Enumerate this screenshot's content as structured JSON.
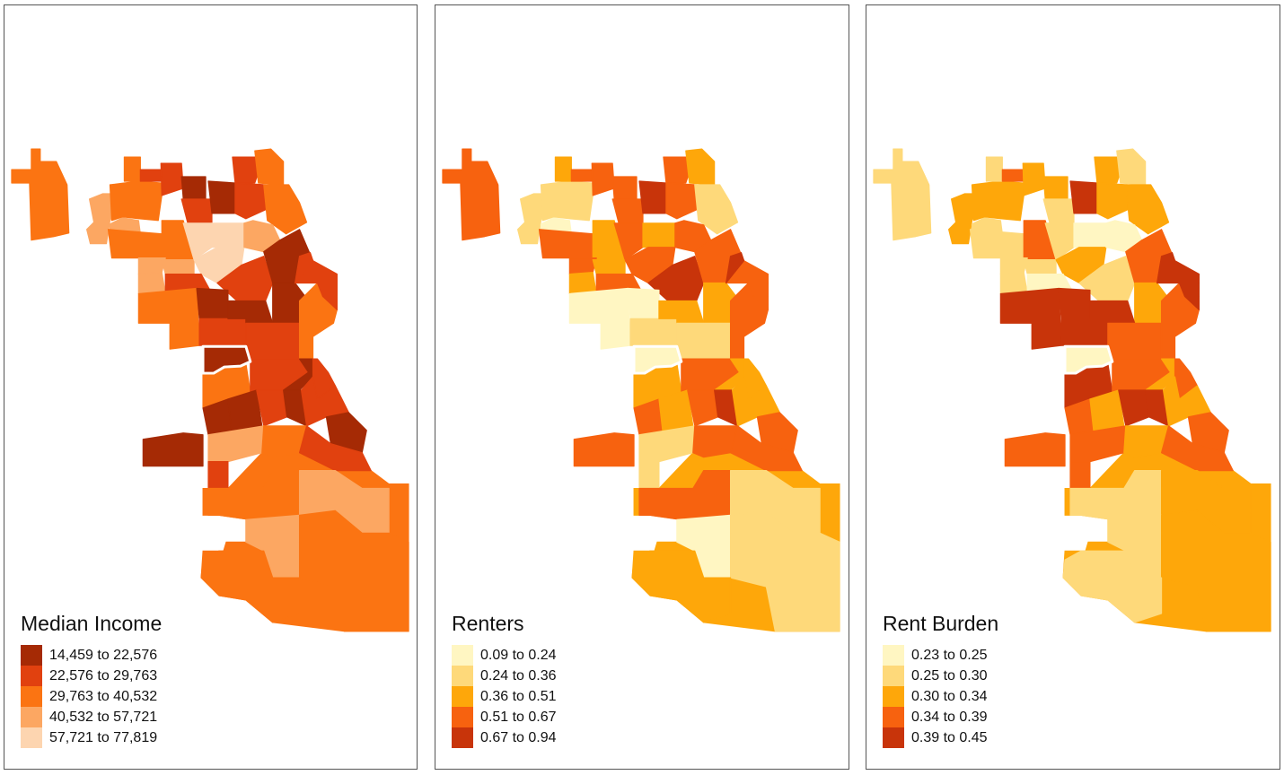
{
  "panels": [
    {
      "title": "Median Income",
      "legend": [
        {
          "label": "14,459 to 22,576",
          "color": "#a52a05"
        },
        {
          "label": "22,576 to 29,763",
          "color": "#e1410f"
        },
        {
          "label": "29,763 to 40,532",
          "color": "#fb7412"
        },
        {
          "label": "40,532 to 57,721",
          "color": "#fca762"
        },
        {
          "label": "57,721 to 77,819",
          "color": "#fdd5b0"
        }
      ]
    },
    {
      "title": "Renters",
      "legend": [
        {
          "label": "0.09 to 0.24",
          "color": "#fff6c2"
        },
        {
          "label": "0.24 to 0.36",
          "color": "#fed97a"
        },
        {
          "label": "0.36 to 0.51",
          "color": "#fea70a"
        },
        {
          "label": "0.51 to 0.67",
          "color": "#f7620f"
        },
        {
          "label": "0.67 to 0.94",
          "color": "#c8340a"
        }
      ]
    },
    {
      "title": "Rent Burden",
      "legend": [
        {
          "label": "0.23 to 0.25",
          "color": "#fff6c2"
        },
        {
          "label": "0.25 to 0.30",
          "color": "#fed97a"
        },
        {
          "label": "0.30 to 0.34",
          "color": "#fea70a"
        },
        {
          "label": "0.34 to 0.39",
          "color": "#f7620f"
        },
        {
          "label": "0.39 to 0.45",
          "color": "#c8340a"
        }
      ]
    }
  ],
  "region_classes": [
    [
      2,
      3,
      3,
      2,
      2,
      1,
      1,
      0,
      1,
      0,
      1,
      2,
      1,
      2,
      2,
      2,
      4,
      4,
      3,
      3,
      4,
      3,
      3,
      1,
      1,
      0,
      0,
      2,
      0,
      1,
      0,
      1,
      2,
      1,
      1,
      2,
      2,
      1,
      0,
      1,
      0,
      0,
      1,
      0,
      1,
      0,
      0,
      3,
      2,
      1,
      1
    ],
    [
      3,
      1,
      0,
      1,
      2,
      3,
      3,
      3,
      3,
      4,
      3,
      2,
      3,
      1,
      3,
      2,
      3,
      2,
      3,
      2,
      3,
      3,
      2,
      3,
      4,
      3,
      2,
      0,
      0,
      1,
      2,
      1,
      3,
      3,
      4,
      1,
      2,
      3,
      2,
      2,
      3,
      2,
      3,
      4,
      2,
      3,
      3,
      1,
      3,
      3,
      1
    ],
    [
      1,
      2,
      1,
      2,
      1,
      3,
      2,
      2,
      1,
      4,
      2,
      1,
      2,
      2,
      1,
      3,
      1,
      0,
      1,
      1,
      2,
      0,
      1,
      0,
      1,
      3,
      2,
      4,
      4,
      4,
      4,
      3,
      3,
      4,
      4,
      4,
      4,
      3,
      2,
      3,
      3,
      2,
      4,
      4,
      2,
      3,
      3,
      3,
      2,
      3,
      3
    ]
  ]
}
